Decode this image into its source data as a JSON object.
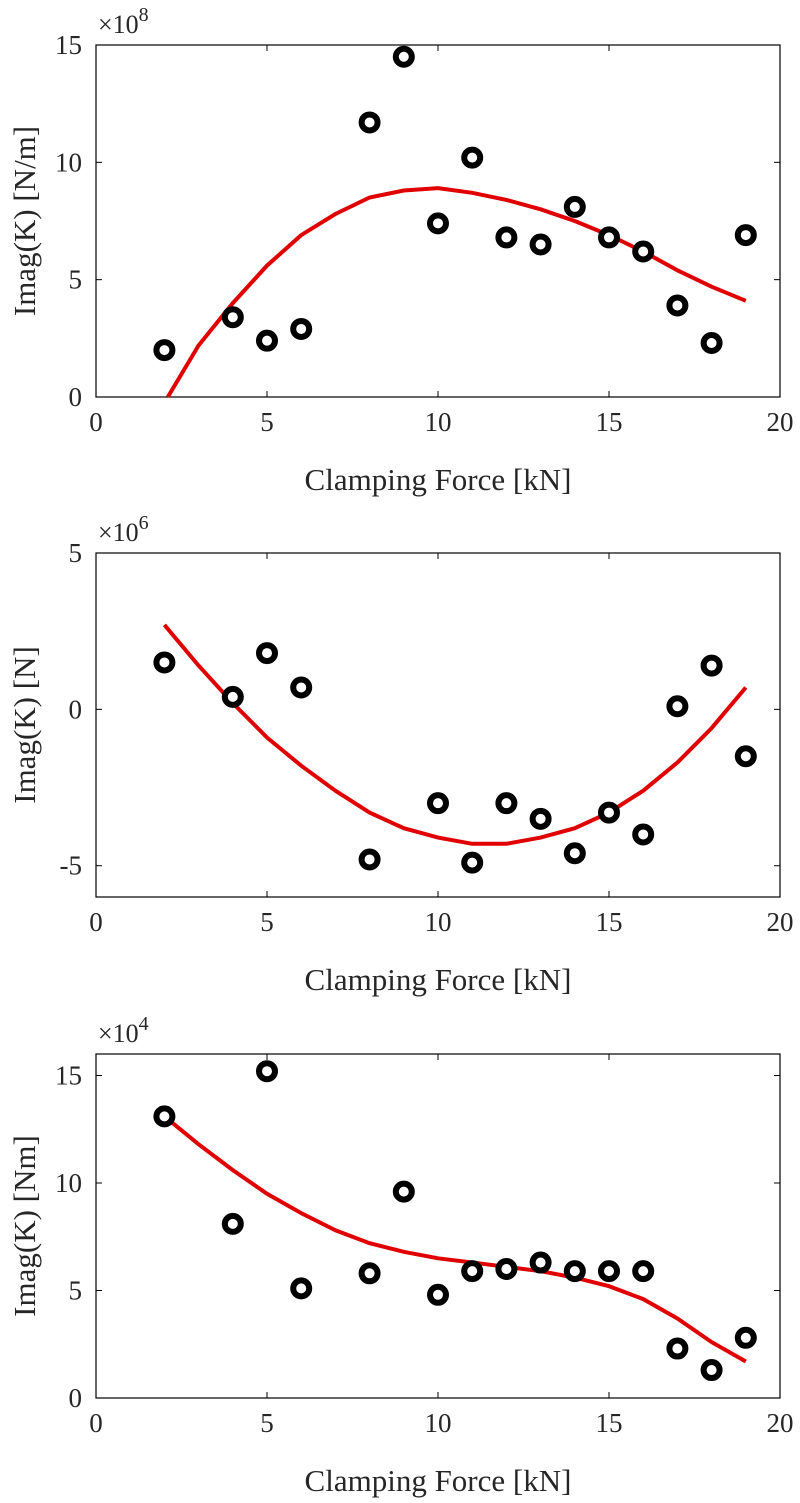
{
  "chart_data": [
    {
      "type": "scatter",
      "xlabel": "Clamping Force [kN]",
      "ylabel": "Imag(K) [N/m]",
      "exponent_base": "×10",
      "exponent_power": "8",
      "xlim": [
        0,
        20
      ],
      "ylim": [
        0,
        15
      ],
      "xticks": [
        0,
        5,
        10,
        15,
        20
      ],
      "yticks": [
        0,
        5,
        10,
        15
      ],
      "grid": false,
      "points": {
        "x": [
          2,
          4,
          5,
          6,
          8,
          9,
          10,
          11,
          12,
          13,
          14,
          15,
          16,
          17,
          18,
          19
        ],
        "y": [
          2.0,
          3.4,
          2.4,
          2.9,
          11.7,
          14.5,
          7.4,
          10.2,
          6.8,
          6.5,
          8.1,
          6.8,
          6.2,
          3.9,
          2.3,
          6.9
        ]
      },
      "fit_line": {
        "color": "#e00000",
        "x": [
          2.1,
          3,
          4,
          5,
          6,
          7,
          8,
          9,
          10,
          11,
          12,
          13,
          14,
          15,
          16,
          17,
          18,
          19
        ],
        "y": [
          0.0,
          2.2,
          4.0,
          5.6,
          6.9,
          7.8,
          8.5,
          8.8,
          8.9,
          8.7,
          8.4,
          8.0,
          7.5,
          6.9,
          6.2,
          5.4,
          4.7,
          4.1
        ]
      }
    },
    {
      "type": "scatter",
      "xlabel": "Clamping Force [kN]",
      "ylabel": "Imag(K) [N]",
      "exponent_base": "×10",
      "exponent_power": "6",
      "xlim": [
        0,
        20
      ],
      "ylim": [
        -6,
        5
      ],
      "xticks": [
        0,
        5,
        10,
        15,
        20
      ],
      "yticks": [
        -5,
        0,
        5
      ],
      "grid": false,
      "points": {
        "x": [
          2,
          4,
          5,
          6,
          8,
          10,
          11,
          12,
          13,
          14,
          15,
          16,
          17,
          18,
          19
        ],
        "y": [
          1.5,
          0.4,
          1.8,
          0.7,
          -4.8,
          -3.0,
          -4.9,
          -3.0,
          -3.5,
          -4.6,
          -3.3,
          -4.0,
          0.1,
          1.4,
          -1.5
        ]
      },
      "fit_line": {
        "color": "#e00000",
        "x": [
          2,
          3,
          4,
          5,
          6,
          7,
          8,
          9,
          10,
          11,
          12,
          13,
          14,
          15,
          16,
          17,
          18,
          19
        ],
        "y": [
          2.7,
          1.4,
          0.2,
          -0.9,
          -1.8,
          -2.6,
          -3.3,
          -3.8,
          -4.1,
          -4.3,
          -4.3,
          -4.1,
          -3.8,
          -3.3,
          -2.6,
          -1.7,
          -0.6,
          0.7
        ]
      }
    },
    {
      "type": "scatter",
      "xlabel": "Clamping Force [kN]",
      "ylabel": "Imag(K) [Nm]",
      "exponent_base": "×10",
      "exponent_power": "4",
      "xlim": [
        0,
        20
      ],
      "ylim": [
        0,
        16
      ],
      "xticks": [
        0,
        5,
        10,
        15,
        20
      ],
      "yticks": [
        0,
        5,
        10,
        15
      ],
      "grid": false,
      "points": {
        "x": [
          2,
          4,
          5,
          6,
          8,
          9,
          10,
          11,
          12,
          13,
          14,
          15,
          16,
          17,
          18,
          19
        ],
        "y": [
          13.1,
          8.1,
          15.2,
          5.1,
          5.8,
          9.6,
          4.8,
          5.9,
          6.0,
          6.3,
          5.9,
          5.9,
          5.9,
          2.3,
          1.3,
          2.8
        ]
      },
      "fit_line": {
        "color": "#e00000",
        "x": [
          2,
          3,
          4,
          5,
          6,
          7,
          8,
          9,
          10,
          11,
          12,
          13,
          14,
          15,
          16,
          17,
          18,
          19
        ],
        "y": [
          13.1,
          11.8,
          10.6,
          9.5,
          8.6,
          7.8,
          7.2,
          6.8,
          6.5,
          6.3,
          6.1,
          5.9,
          5.6,
          5.2,
          4.6,
          3.7,
          2.6,
          1.7
        ]
      }
    }
  ]
}
